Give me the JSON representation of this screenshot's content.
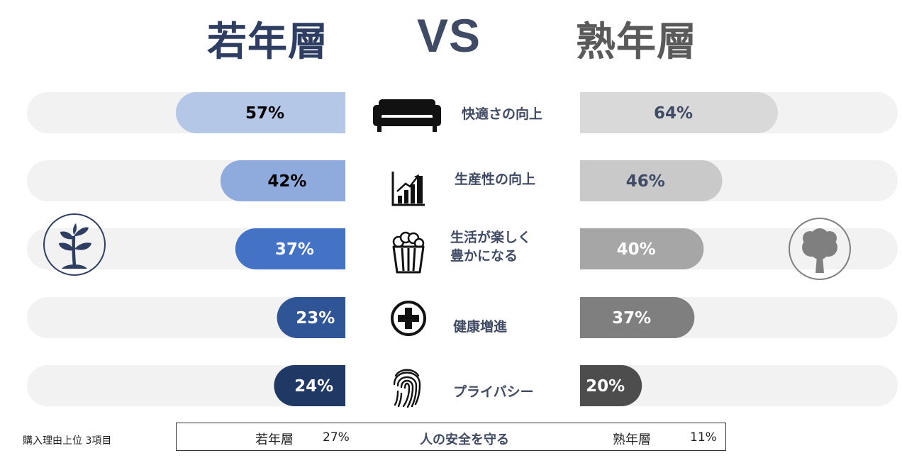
{
  "header": {
    "young": "若年層",
    "vs": "VS",
    "mature": "熟年層"
  },
  "chart_data": {
    "type": "bar",
    "categories": [
      "快適さの向上",
      "生産性の向上",
      "生活が楽しく\n豊かになる",
      "健康増進",
      "プライバシー"
    ],
    "series": [
      {
        "name": "若年層",
        "values": [
          57,
          42,
          37,
          23,
          24
        ],
        "labels": [
          "57%",
          "42%",
          "37%",
          "23%",
          "24%"
        ]
      },
      {
        "name": "熟年層",
        "values": [
          64,
          46,
          40,
          37,
          20
        ],
        "labels": [
          "64%",
          "46%",
          "40%",
          "37%",
          "20%"
        ]
      }
    ],
    "ylim": [
      0,
      100
    ],
    "colors": {
      "young": [
        "#b4c7e7",
        "#8faadc",
        "#4472c4",
        "#2f5597",
        "#203864"
      ],
      "young_text": [
        "#000000",
        "#000000",
        "#ffffff",
        "#ffffff",
        "#ffffff"
      ],
      "mature": [
        "#d9d9d9",
        "#c9c9c9",
        "#a6a6a6",
        "#7f7f7f",
        "#4d4d4d"
      ],
      "mature_text": [
        "#3f4a64",
        "#3f4a64",
        "#ffffff",
        "#ffffff",
        "#ffffff"
      ],
      "track": "#f2f2f2"
    }
  },
  "icons": [
    "sofa-icon",
    "growth-chart-icon",
    "popcorn-icon",
    "medical-cross-icon",
    "fingerprint-icon",
    "sprout-icon",
    "tree-icon"
  ],
  "footnote": "購入理由上位 3項目",
  "safety": {
    "young_label": "若年層",
    "young_value": "27%",
    "topic": "人の安全を守る",
    "mature_label": "熟年層",
    "mature_value": "11%"
  }
}
